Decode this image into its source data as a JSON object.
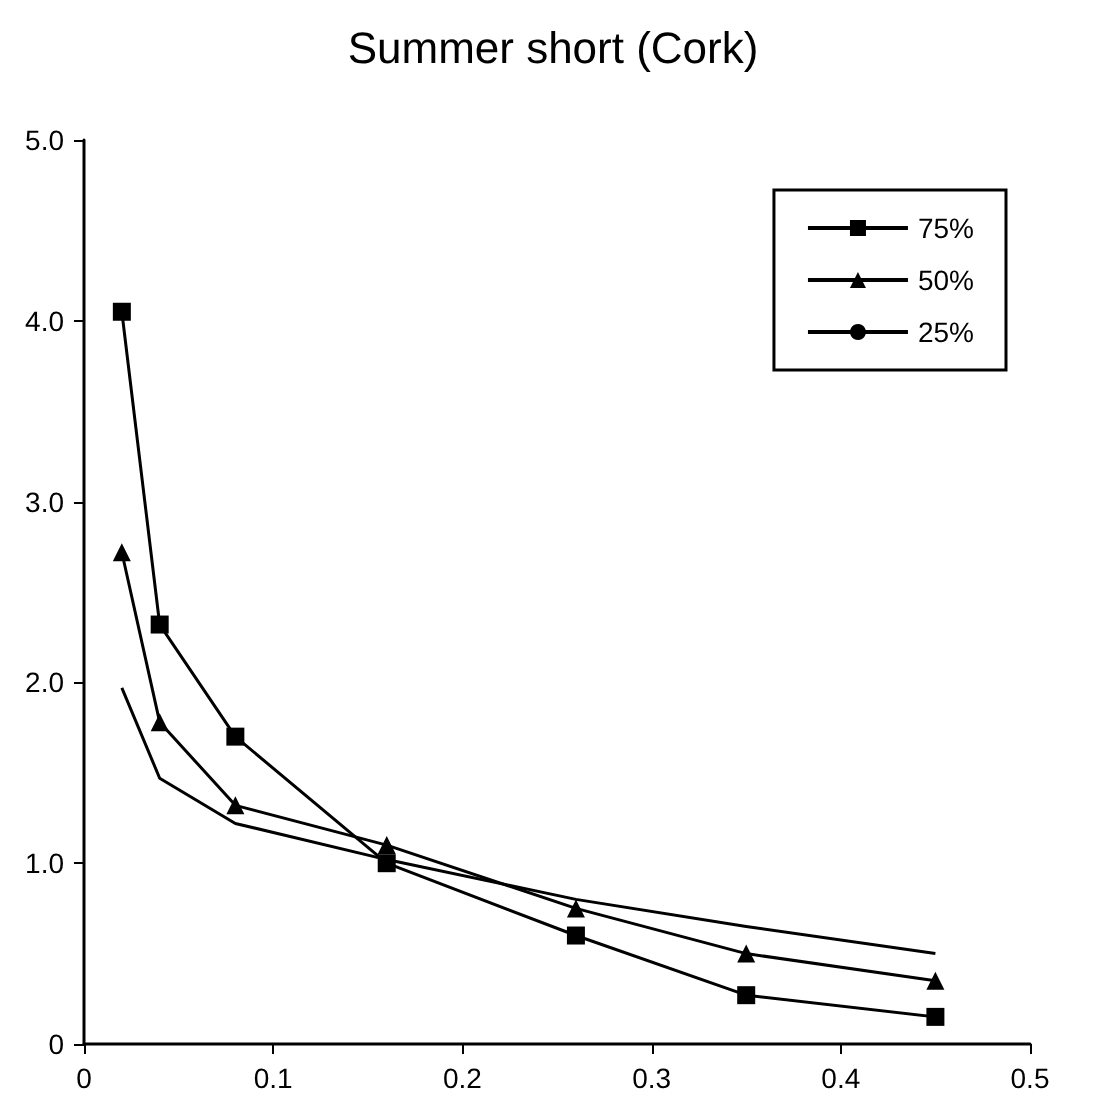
{
  "chart_data": {
    "type": "line",
    "title": "Summer short (Cork)",
    "xlim": [
      0,
      0.5
    ],
    "xticks": [
      0,
      0.1,
      0.2,
      0.3,
      0.4,
      0.5
    ],
    "ylim": [
      0,
      5
    ],
    "yticks": [
      0,
      {
        "value": 1,
        "label": "1.0"
      },
      {
        "value": 2,
        "label": "2.0"
      },
      {
        "value": 3,
        "label": "3.0"
      },
      {
        "value": 4,
        "label": "4.0"
      },
      {
        "value": 5,
        "label": "5.0"
      }
    ],
    "x": [
      0.02,
      0.04,
      0.08,
      0.16,
      0.26,
      0.35,
      0.45
    ],
    "series": [
      {
        "name": "75%",
        "color": "#000000",
        "marker": "square",
        "values": [
          4.05,
          2.32,
          1.7,
          1.0,
          0.6,
          0.27,
          0.15
        ]
      },
      {
        "name": "50%",
        "color": "#000000",
        "marker": "triangle",
        "values": [
          2.72,
          1.78,
          1.32,
          1.1,
          0.75,
          0.5,
          0.35
        ]
      },
      {
        "name": "25%",
        "color": "#000000",
        "marker": "none",
        "values": [
          1.97,
          1.47,
          1.22,
          1.02,
          0.8,
          0.65,
          0.5
        ]
      }
    ],
    "legend": "top right",
    "grid": false,
    "line_style": "solid"
  }
}
